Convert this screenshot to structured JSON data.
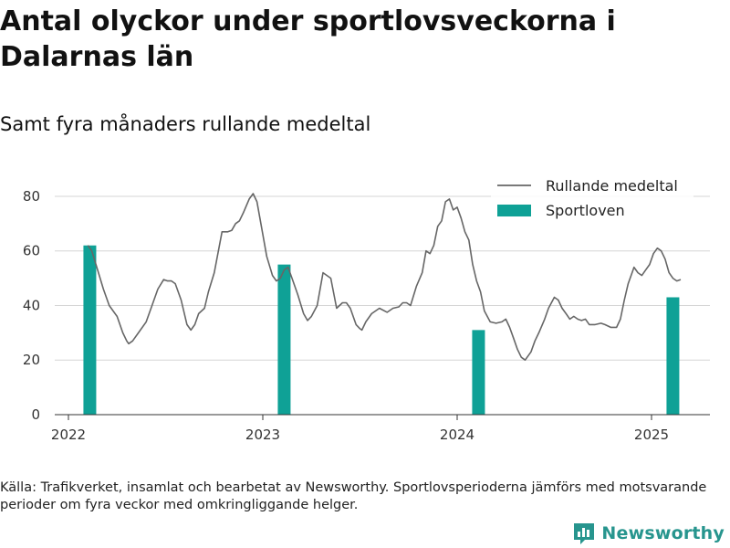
{
  "title": "Antal olyckor under sportlovsveckorna i Dalarnas län",
  "subtitle": "Samt fyra månaders rullande medeltal",
  "source": "Källa: Trafikverket, insamlat och bearbetat av Newsworthy. Sportlovsperioderna jämförs med motsvarande perioder om fyra veckor med omkringliggande helger.",
  "brand": {
    "name": "Newsworthy",
    "logo_icon": "bar-chart-logo-icon",
    "color": "#27958e"
  },
  "chart_data": {
    "type": "bar+line",
    "xlim": [
      2022.0,
      2025.3
    ],
    "ylim": [
      0,
      85
    ],
    "yticks": [
      0,
      20,
      40,
      60,
      80
    ],
    "xticks": [
      {
        "value": 2022,
        "label": "2022"
      },
      {
        "value": 2023,
        "label": "2023"
      },
      {
        "value": 2024,
        "label": "2024"
      },
      {
        "value": 2025,
        "label": "2025"
      }
    ],
    "grid": true,
    "legend_position": "top-right",
    "legend": [
      {
        "label": "Rullande medeltal",
        "kind": "line",
        "color": "#666666"
      },
      {
        "label": "Sportloven",
        "kind": "bar",
        "color": "#0fa196"
      }
    ],
    "bars": {
      "name": "Sportloven",
      "color": "#0fa196",
      "x": [
        2022.11,
        2023.11,
        2024.11,
        2025.11
      ],
      "values": [
        62,
        55,
        31,
        43
      ]
    },
    "line": {
      "name": "Rullande medeltal",
      "color": "#666666",
      "points": [
        [
          2022.1,
          62
        ],
        [
          2022.12,
          60
        ],
        [
          2022.15,
          53
        ],
        [
          2022.18,
          46
        ],
        [
          2022.21,
          40
        ],
        [
          2022.25,
          36
        ],
        [
          2022.28,
          30
        ],
        [
          2022.3,
          27
        ],
        [
          2022.31,
          26
        ],
        [
          2022.33,
          27
        ],
        [
          2022.36,
          30
        ],
        [
          2022.4,
          34
        ],
        [
          2022.43,
          40
        ],
        [
          2022.46,
          46
        ],
        [
          2022.49,
          49.5
        ],
        [
          2022.51,
          49
        ],
        [
          2022.53,
          49
        ],
        [
          2022.55,
          48
        ],
        [
          2022.58,
          42
        ],
        [
          2022.61,
          33
        ],
        [
          2022.63,
          31
        ],
        [
          2022.65,
          33
        ],
        [
          2022.67,
          37
        ],
        [
          2022.7,
          39
        ],
        [
          2022.72,
          45
        ],
        [
          2022.75,
          52
        ],
        [
          2022.79,
          67
        ],
        [
          2022.82,
          67
        ],
        [
          2022.84,
          67.5
        ],
        [
          2022.86,
          70
        ],
        [
          2022.88,
          71
        ],
        [
          2022.9,
          74
        ],
        [
          2022.93,
          79
        ],
        [
          2022.95,
          81
        ],
        [
          2022.97,
          78
        ],
        [
          2022.99,
          70
        ],
        [
          2023.02,
          58
        ],
        [
          2023.05,
          51
        ],
        [
          2023.07,
          49
        ],
        [
          2023.09,
          50
        ],
        [
          2023.11,
          53
        ],
        [
          2023.13,
          54
        ],
        [
          2023.15,
          50
        ],
        [
          2023.18,
          44
        ],
        [
          2023.21,
          37
        ],
        [
          2023.23,
          34.5
        ],
        [
          2023.25,
          36
        ],
        [
          2023.28,
          40
        ],
        [
          2023.31,
          52
        ],
        [
          2023.35,
          50
        ],
        [
          2023.38,
          39
        ],
        [
          2023.41,
          41
        ],
        [
          2023.43,
          41
        ],
        [
          2023.45,
          39
        ],
        [
          2023.48,
          33
        ],
        [
          2023.5,
          31.5
        ],
        [
          2023.51,
          31
        ],
        [
          2023.53,
          34
        ],
        [
          2023.56,
          37
        ],
        [
          2023.6,
          39
        ],
        [
          2023.64,
          37.5
        ],
        [
          2023.67,
          39
        ],
        [
          2023.7,
          39.5
        ],
        [
          2023.72,
          41
        ],
        [
          2023.74,
          41
        ],
        [
          2023.76,
          40
        ],
        [
          2023.79,
          47
        ],
        [
          2023.82,
          52
        ],
        [
          2023.84,
          60
        ],
        [
          2023.86,
          59
        ],
        [
          2023.88,
          62
        ],
        [
          2023.9,
          69
        ],
        [
          2023.92,
          71
        ],
        [
          2023.94,
          78
        ],
        [
          2023.96,
          79
        ],
        [
          2023.98,
          75
        ],
        [
          2024.0,
          76
        ],
        [
          2024.02,
          72
        ],
        [
          2024.04,
          67
        ],
        [
          2024.06,
          64
        ],
        [
          2024.08,
          55
        ],
        [
          2024.1,
          49
        ],
        [
          2024.12,
          45
        ],
        [
          2024.14,
          38
        ],
        [
          2024.17,
          34
        ],
        [
          2024.2,
          33.5
        ],
        [
          2024.23,
          34
        ],
        [
          2024.25,
          35
        ],
        [
          2024.27,
          32
        ],
        [
          2024.29,
          28
        ],
        [
          2024.31,
          24
        ],
        [
          2024.33,
          21
        ],
        [
          2024.35,
          20
        ],
        [
          2024.38,
          23
        ],
        [
          2024.4,
          27
        ],
        [
          2024.42,
          30
        ],
        [
          2024.45,
          35
        ],
        [
          2024.47,
          39
        ],
        [
          2024.5,
          43
        ],
        [
          2024.52,
          42
        ],
        [
          2024.54,
          39
        ],
        [
          2024.56,
          37
        ],
        [
          2024.58,
          35
        ],
        [
          2024.6,
          36
        ],
        [
          2024.62,
          35
        ],
        [
          2024.64,
          34.5
        ],
        [
          2024.66,
          35
        ],
        [
          2024.68,
          33
        ],
        [
          2024.71,
          33
        ],
        [
          2024.74,
          33.5
        ],
        [
          2024.76,
          33
        ],
        [
          2024.79,
          32
        ],
        [
          2024.82,
          32
        ],
        [
          2024.84,
          35
        ],
        [
          2024.86,
          42
        ],
        [
          2024.88,
          48
        ],
        [
          2024.9,
          52
        ],
        [
          2024.91,
          54
        ],
        [
          2024.93,
          52
        ],
        [
          2024.95,
          51
        ],
        [
          2024.97,
          53
        ],
        [
          2024.99,
          55
        ],
        [
          2025.01,
          59
        ],
        [
          2025.03,
          61
        ],
        [
          2025.05,
          60
        ],
        [
          2025.07,
          57
        ],
        [
          2025.09,
          52
        ],
        [
          2025.11,
          50
        ],
        [
          2025.13,
          49
        ],
        [
          2025.15,
          49.5
        ]
      ]
    }
  }
}
